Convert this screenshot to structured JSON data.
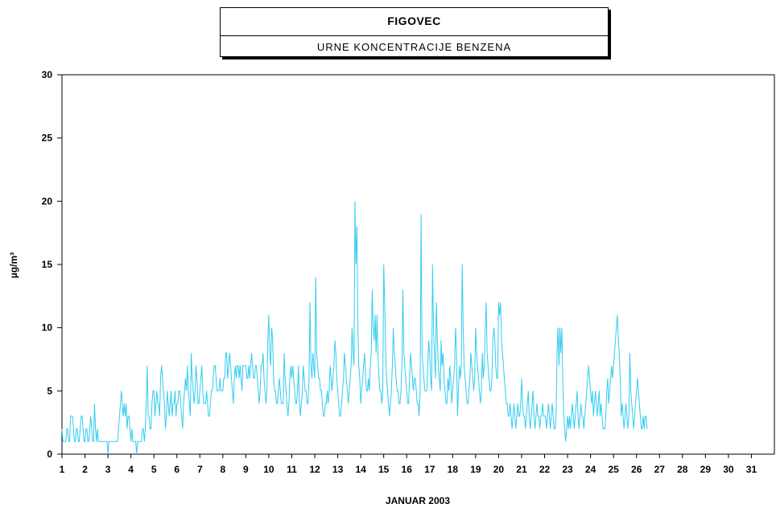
{
  "chart_data": {
    "type": "line",
    "title": "FIGOVEC",
    "subtitle": "URNE KONCENTRACIJE BENZENA",
    "xlabel": "JANUAR 2003",
    "ylabel": "µg/m³",
    "ylim": [
      0,
      30
    ],
    "yticks": [
      "0",
      "5",
      "10",
      "15",
      "20",
      "25",
      "30"
    ],
    "xticks": [
      "1",
      "2",
      "3",
      "4",
      "5",
      "6",
      "7",
      "8",
      "9",
      "10",
      "11",
      "12",
      "13",
      "14",
      "15",
      "16",
      "17",
      "18",
      "19",
      "20",
      "21",
      "22",
      "23",
      "24",
      "25",
      "26",
      "27",
      "28",
      "29",
      "30",
      "31"
    ],
    "xlim": [
      1,
      32
    ],
    "grid": false,
    "line_color": "#33ccf0",
    "series": [
      {
        "day_start": 1,
        "step_hours": 1,
        "values": [
          2,
          1,
          1,
          1,
          1,
          2,
          2,
          1,
          1,
          3,
          3,
          3,
          2,
          1,
          1,
          2,
          2,
          1,
          1,
          2,
          3,
          3,
          2,
          1,
          1,
          2,
          2,
          1,
          1,
          2,
          3,
          2,
          1,
          1,
          4,
          2,
          1,
          2,
          1,
          1,
          1,
          1,
          1,
          1,
          1,
          1,
          1,
          1,
          0,
          1,
          1,
          1,
          1,
          1,
          1,
          1,
          1,
          1,
          1,
          2,
          3,
          4,
          5,
          4,
          3,
          4,
          3,
          4,
          2,
          3,
          3,
          2,
          1,
          2,
          1,
          1,
          1,
          1,
          0,
          1,
          1,
          1,
          1,
          1,
          2,
          2,
          1,
          2,
          4,
          7,
          3,
          3,
          2,
          2,
          4,
          5,
          5,
          3,
          4,
          5,
          4,
          4,
          3,
          6,
          7,
          6,
          5,
          4,
          2,
          3,
          5,
          4,
          3,
          4,
          5,
          3,
          4,
          4,
          5,
          3,
          4,
          4,
          5,
          5,
          4,
          3,
          2,
          4,
          5,
          6,
          5,
          7,
          5,
          4,
          3,
          8,
          6,
          5,
          4,
          5,
          7,
          6,
          4,
          4,
          5,
          6,
          7,
          5,
          4,
          4,
          4,
          5,
          4,
          3,
          3,
          4,
          5,
          5,
          6,
          7,
          7,
          6,
          5,
          5,
          5,
          6,
          5,
          5,
          5,
          6,
          6,
          8,
          8,
          6,
          7,
          8,
          7,
          6,
          5,
          4,
          6,
          7,
          6,
          7,
          7,
          6,
          7,
          6,
          5,
          7,
          7,
          7,
          7,
          6,
          6,
          7,
          6,
          7,
          8,
          7,
          6,
          6,
          7,
          7,
          6,
          5,
          4,
          5,
          7,
          7,
          8,
          6,
          5,
          4,
          5,
          9,
          11,
          8,
          7,
          10,
          9,
          6,
          5,
          5,
          4,
          4,
          5,
          6,
          5,
          4,
          4,
          4,
          8,
          6,
          5,
          4,
          3,
          4,
          6,
          7,
          6,
          7,
          6,
          5,
          4,
          4,
          5,
          7,
          4,
          3,
          4,
          5,
          7,
          6,
          5,
          5,
          4,
          4,
          6,
          12,
          7,
          6,
          8,
          7,
          6,
          14,
          8,
          7,
          6,
          6,
          5,
          5,
          4,
          3,
          3,
          4,
          4,
          5,
          4,
          5,
          7,
          6,
          5,
          6,
          7,
          9,
          8,
          6,
          5,
          4,
          3,
          3,
          4,
          5,
          6,
          8,
          7,
          6,
          5,
          4,
          5,
          6,
          7,
          10,
          8,
          7,
          20,
          15,
          18,
          10,
          7,
          6,
          4,
          5,
          6,
          7,
          8,
          6,
          5,
          5,
          6,
          5,
          7,
          8,
          13,
          10,
          9,
          11,
          8,
          11,
          8,
          6,
          5,
          5,
          4,
          5,
          15,
          12,
          8,
          6,
          5,
          4,
          3,
          4,
          5,
          7,
          10,
          8,
          7,
          6,
          5,
          5,
          4,
          4,
          5,
          7,
          13,
          8,
          7,
          6,
          5,
          4,
          4,
          6,
          8,
          7,
          6,
          5,
          6,
          6,
          5,
          4,
          4,
          3,
          5,
          19,
          8,
          7,
          6,
          5,
          5,
          5,
          7,
          9,
          8,
          6,
          5,
          15,
          10,
          8,
          6,
          12,
          9,
          7,
          6,
          5,
          9,
          7,
          8,
          6,
          5,
          4,
          4,
          6,
          5,
          7,
          6,
          4,
          5,
          6,
          7,
          10,
          8,
          3,
          5,
          7,
          6,
          7,
          15,
          10,
          7,
          6,
          5,
          4,
          4,
          5,
          6,
          8,
          7,
          6,
          5,
          6,
          10,
          8,
          7,
          6,
          5,
          4,
          5,
          8,
          6,
          7,
          10,
          12,
          8,
          7,
          6,
          5,
          5,
          6,
          9,
          10,
          9,
          7,
          6,
          6,
          12,
          11,
          12,
          9,
          8,
          7,
          6,
          5,
          4,
          4,
          3,
          3,
          4,
          3,
          2,
          3,
          4,
          3,
          2,
          3,
          4,
          3,
          3,
          4,
          6,
          4,
          3,
          3,
          2,
          3,
          4,
          5,
          3,
          2,
          3,
          4,
          5,
          3,
          2,
          3,
          4,
          3,
          3,
          2,
          3,
          3,
          4,
          3,
          3,
          3,
          2,
          3,
          4,
          3,
          2,
          3,
          4,
          3,
          2,
          2,
          3,
          8,
          10,
          7,
          10,
          8,
          10,
          6,
          3,
          2,
          1,
          2,
          3,
          2,
          3,
          2,
          3,
          4,
          3,
          2,
          3,
          4,
          5,
          3,
          2,
          3,
          4,
          3,
          3,
          2,
          3,
          4,
          5,
          6,
          7,
          6,
          5,
          4,
          5,
          3,
          4,
          5,
          4,
          3,
          4,
          5,
          3,
          4,
          3,
          2,
          2,
          2,
          3,
          5,
          6,
          4,
          5,
          6,
          7,
          6,
          7,
          8,
          9,
          10,
          11,
          9,
          8,
          6,
          3,
          4,
          3,
          2,
          3,
          4,
          3,
          2,
          3,
          8,
          5,
          4,
          3,
          2,
          3,
          4,
          5,
          6,
          5,
          4,
          3,
          2,
          2,
          3,
          2,
          3,
          3,
          2
        ]
      }
    ]
  }
}
